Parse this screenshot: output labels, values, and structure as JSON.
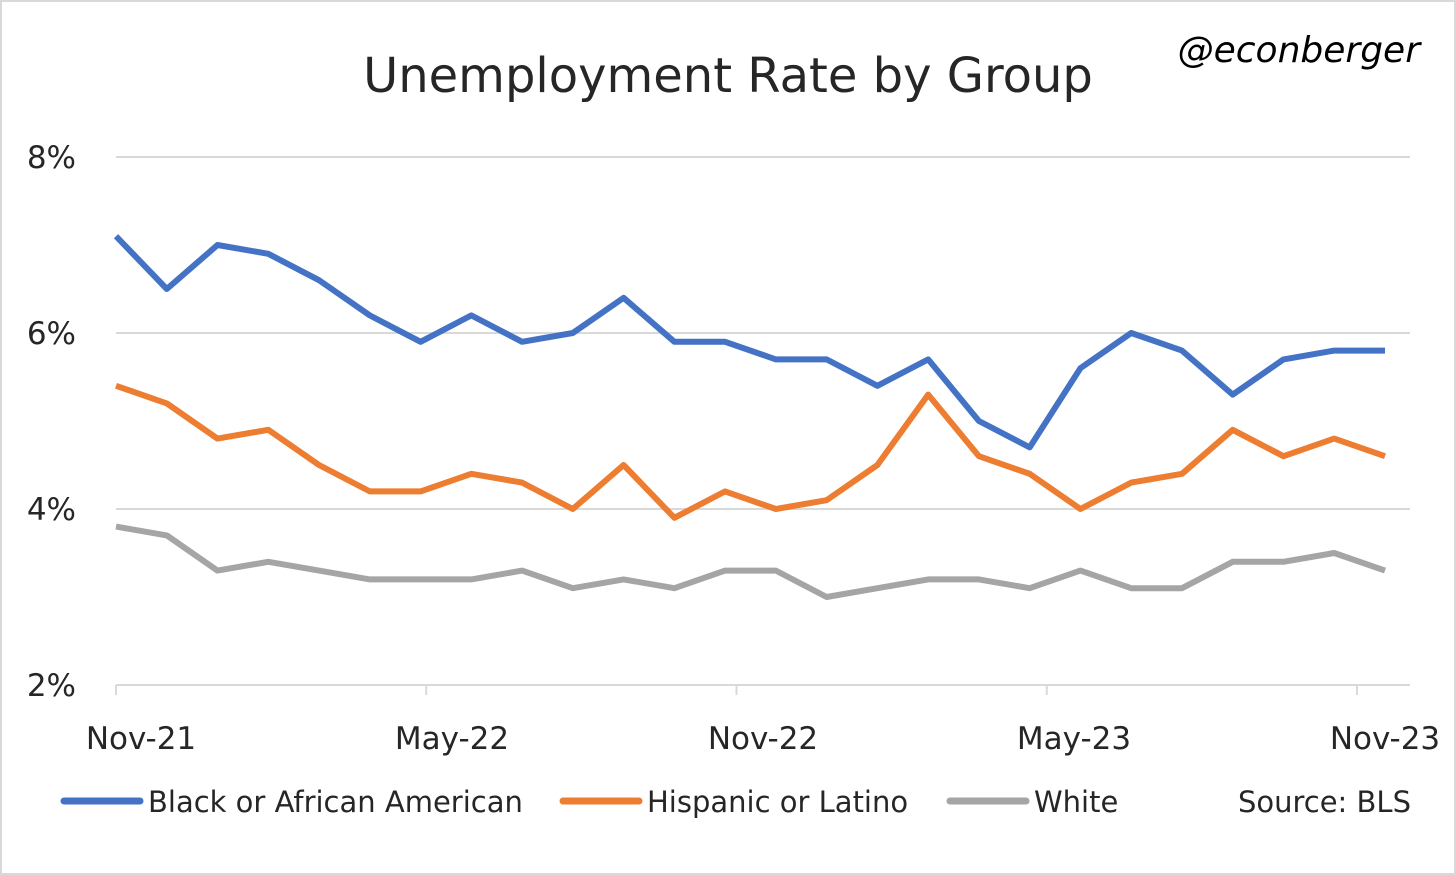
{
  "chart_data": {
    "type": "line",
    "title": "Unemployment Rate by Group",
    "handle": "@econberger",
    "source": "Source: BLS",
    "x_tick_labels": [
      "Nov-21",
      "May-22",
      "Nov-22",
      "May-23",
      "Nov-23"
    ],
    "y_tick_labels": [
      "8%",
      "6%",
      "4%",
      "2%"
    ],
    "y_ticks": [
      8,
      6,
      4,
      2
    ],
    "ylim": [
      2,
      8
    ],
    "grid": true,
    "legend_position": "bottom",
    "series": [
      {
        "name": "Black or African American",
        "color": "#4472C4",
        "values": [
          7.1,
          6.5,
          7.0,
          6.9,
          6.6,
          6.2,
          5.9,
          6.2,
          5.9,
          6.0,
          6.4,
          5.9,
          5.9,
          5.7,
          5.7,
          5.4,
          5.7,
          5.0,
          4.7,
          5.6,
          6.0,
          5.8,
          5.3,
          5.7,
          5.8,
          5.8
        ]
      },
      {
        "name": "Hispanic or Latino",
        "color": "#ED7D31",
        "values": [
          5.4,
          5.2,
          4.8,
          4.9,
          4.5,
          4.2,
          4.2,
          4.4,
          4.3,
          4.0,
          4.5,
          3.9,
          4.2,
          4.0,
          4.1,
          4.5,
          5.3,
          4.6,
          4.4,
          4.0,
          4.3,
          4.4,
          4.9,
          4.6,
          4.8,
          4.6
        ]
      },
      {
        "name": "White",
        "color": "#A5A5A5",
        "values": [
          3.8,
          3.7,
          3.3,
          3.4,
          3.3,
          3.2,
          3.2,
          3.2,
          3.3,
          3.1,
          3.2,
          3.1,
          3.3,
          3.3,
          3.0,
          3.1,
          3.2,
          3.2,
          3.1,
          3.3,
          3.1,
          3.1,
          3.4,
          3.4,
          3.5,
          3.3
        ]
      }
    ]
  }
}
